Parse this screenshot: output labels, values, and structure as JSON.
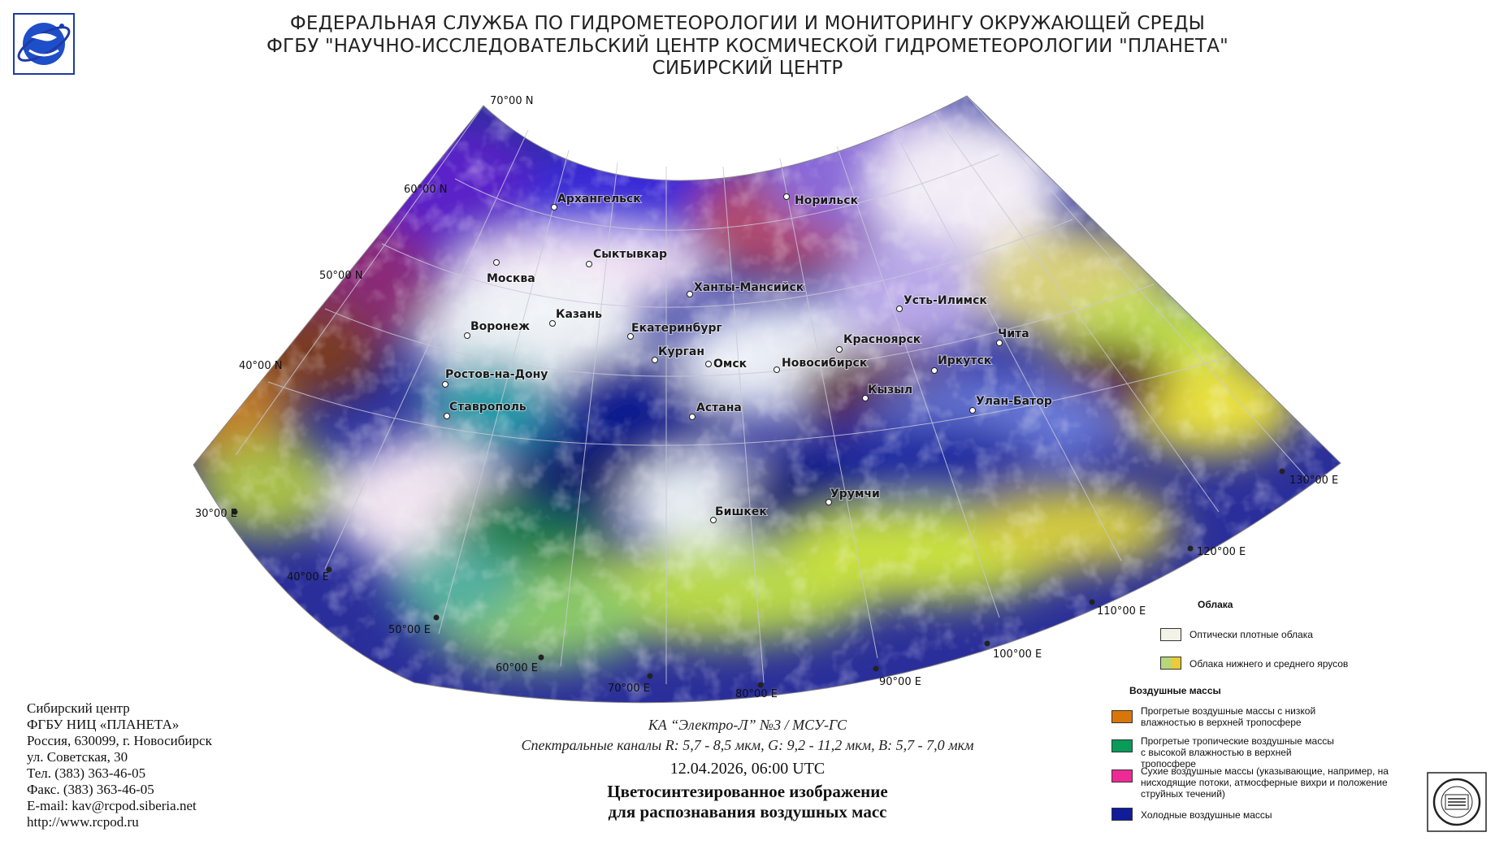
{
  "header": {
    "line1": "ФЕДЕРАЛЬНАЯ СЛУЖБА ПО ГИДРОМЕТЕОРОЛОГИИ И МОНИТОРИНГУ ОКРУЖАЮЩЕЙ СРЕДЫ",
    "line2": "ФГБУ \"НАУЧНО-ИССЛЕДОВАТЕЛЬСКИЙ ЦЕНТР КОСМИЧЕСКОЙ ГИДРОМЕТЕОРОЛОГИИ \"ПЛАНЕТА\"",
    "line3": "СИБИРСКИЙ ЦЕНТР"
  },
  "map": {
    "lat_labels": [
      "70°00 N",
      "60°00 N",
      "50°00 N",
      "40°00 N"
    ],
    "lon_labels": [
      "30°00 E",
      "40°00 E",
      "50°00 E",
      "60°00 E",
      "70°00 E",
      "80°00 E",
      "90°00 E",
      "100°00 E",
      "110°00 E",
      "120°00 E",
      "130°00 E"
    ],
    "cities": [
      "Архангельск",
      "Норильск",
      "Сыктывкар",
      "Москва",
      "Ханты-Мансийск",
      "Казань",
      "Усть-Илимск",
      "Воронеж",
      "Екатеринбург",
      "Красноярск",
      "Чита",
      "Курган",
      "Омск",
      "Новосибирск",
      "Иркутск",
      "Ростов-на-Дону",
      "Кызыл",
      "Улан-Батор",
      "Ставрополь",
      "Астана",
      "Урумчи",
      "Бишкек"
    ]
  },
  "sender": {
    "line1": "Сибирский центр",
    "line2": "ФГБУ НИЦ «ПЛАНЕТА»",
    "line3": "Россия, 630099, г. Новосибирск",
    "line4": "ул. Советская, 30",
    "line5": "Тел. (383) 363-46-05",
    "line6": "Факс. (383) 363-46-05",
    "line7": "E-mail: kav@rcpod.siberia.net",
    "line8": "http://www.rcpod.ru"
  },
  "caption": {
    "satellite": "КА “Электро-Л” №3 / МСУ-ГС",
    "channels": "Спектральные каналы R: 5,7 - 8,5 мкм, G: 9,2 - 11,2 мкм, B: 5,7 - 7,0 мкм",
    "datetime": "12.04.2026, 06:00 UTC",
    "title1": "Цветосинтезированное изображение",
    "title2": "для распознавания воздушных масс"
  },
  "legend": {
    "clouds_title": "Облака",
    "dense_clouds": "Оптически плотные облака",
    "low_mid_clouds": "Облака нижнего и среднего ярусов",
    "airmass_title": "Воздушные массы",
    "warm_low": "Прогретые воздушные массы с низкой влажностью в верхней тропосфере",
    "warm_tropical": "Прогретые тропичеcкие воздушные массы с высокой влажностью в верхней тропосфере",
    "dry": "Сухие воздушные массы (указывающие, например, на нисходящие потоки, атмосферные вихри и положение струйных течений)",
    "cold": "Холодные воздушные массы",
    "colors": {
      "dense": "#f2f2e6",
      "low_mid_a": "#b6d77a",
      "low_mid_b": "#e8cc3a",
      "warm_low": "#d8760c",
      "warm_tropical": "#0a9a5a",
      "dry": "#ee2a96",
      "cold": "#101c9a"
    }
  }
}
